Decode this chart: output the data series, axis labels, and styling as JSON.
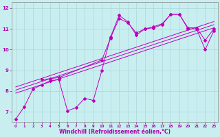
{
  "xlabel": "Windchill (Refroidissement éolien,°C)",
  "bg_color": "#c8eef0",
  "line_color": "#bb00bb",
  "grid_color": "#aad8d8",
  "axis_color": "#aa00aa",
  "xlim": [
    -0.5,
    23.5
  ],
  "ylim": [
    6.5,
    12.3
  ],
  "xticks": [
    0,
    1,
    2,
    3,
    4,
    5,
    6,
    7,
    8,
    9,
    10,
    11,
    12,
    13,
    14,
    15,
    16,
    17,
    18,
    19,
    20,
    21,
    22,
    23
  ],
  "yticks": [
    7,
    8,
    9,
    10,
    11,
    12
  ],
  "line1_x": [
    0,
    1,
    2,
    3,
    4,
    5,
    6,
    7,
    8,
    9,
    10,
    11,
    12,
    13,
    14,
    15,
    16,
    17,
    18,
    19,
    20,
    21,
    22,
    23
  ],
  "line1_y": [
    6.65,
    7.25,
    8.1,
    8.3,
    8.5,
    8.55,
    7.05,
    7.2,
    7.65,
    7.55,
    9.0,
    10.6,
    11.65,
    11.35,
    10.7,
    11.0,
    11.05,
    11.2,
    11.7,
    11.7,
    11.0,
    11.0,
    10.0,
    10.9
  ],
  "line2_x": [
    3,
    4,
    5,
    10,
    11,
    12,
    13,
    14,
    15,
    16,
    17,
    18,
    19,
    20,
    21,
    22,
    23
  ],
  "line2_y": [
    8.55,
    8.6,
    8.65,
    9.5,
    10.55,
    11.5,
    11.3,
    10.8,
    11.0,
    11.1,
    11.25,
    11.7,
    11.7,
    11.05,
    11.05,
    10.45,
    11.0
  ],
  "trend1_x": [
    0,
    23
  ],
  "trend1_y": [
    7.9,
    11.05
  ],
  "trend2_x": [
    0,
    23
  ],
  "trend2_y": [
    8.05,
    11.2
  ],
  "trend3_x": [
    0,
    23
  ],
  "trend3_y": [
    8.2,
    11.35
  ]
}
